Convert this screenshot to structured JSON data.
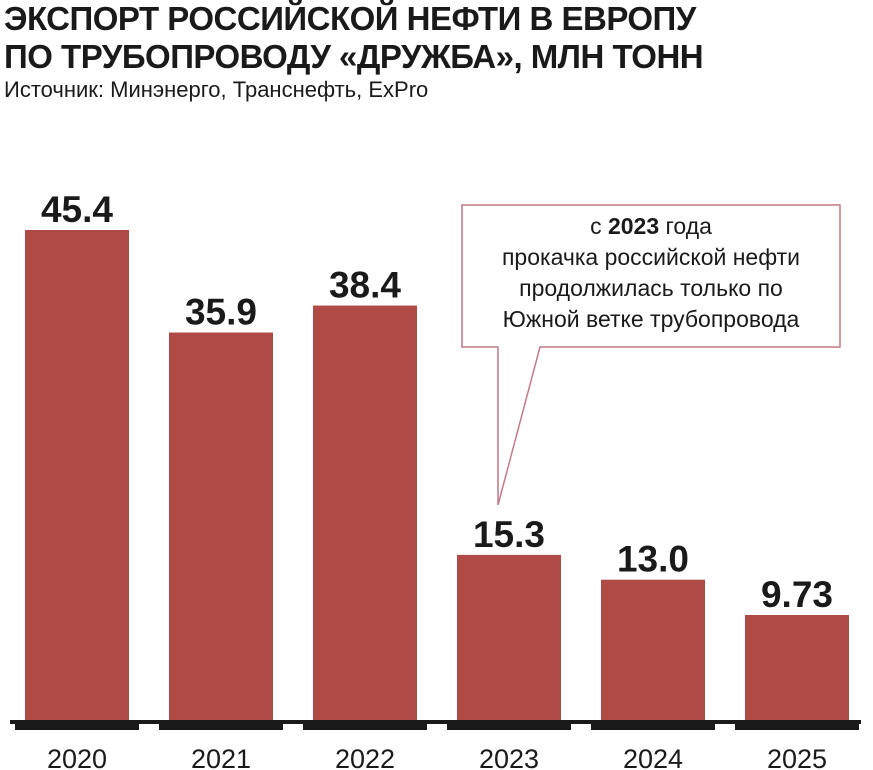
{
  "header": {
    "title_line1": "ЭКСПОРТ РОССИЙСКОЙ НЕФТИ В ЕВРОПУ",
    "title_line2": "ПО ТРУБОПРОВОДУ «ДРУЖБА», МЛН ТОНН",
    "source": "Источник: Минэнерго, Транснефть, ExPro"
  },
  "callout": {
    "pre": "с ",
    "year": "2023",
    "post": " года",
    "line2": "прокачка российской нефти",
    "line3": "продолжилась только по",
    "line4": "Южной ветке трубопровода"
  },
  "colors": {
    "bar": "#b04a47",
    "axis": "#1a1a1a",
    "callout_border": "#c27a86"
  },
  "chart_data": {
    "type": "bar",
    "title": "ЭКСПОРТ РОССИЙСКОЙ НЕФТИ В ЕВРОПУ ПО ТРУБОПРОВОДУ «ДРУЖБА», МЛН ТОНН",
    "categories": [
      "2020",
      "2021",
      "2022",
      "2023",
      "2024",
      "2025"
    ],
    "values": [
      45.4,
      35.9,
      38.4,
      15.3,
      13.0,
      9.73
    ],
    "value_labels": [
      "45.4",
      "35.9",
      "38.4",
      "15.3",
      "13.0",
      "9.73"
    ],
    "xlabel": "",
    "ylabel": "",
    "ylim": [
      0,
      45.4
    ],
    "grid": false,
    "legend": "none"
  }
}
